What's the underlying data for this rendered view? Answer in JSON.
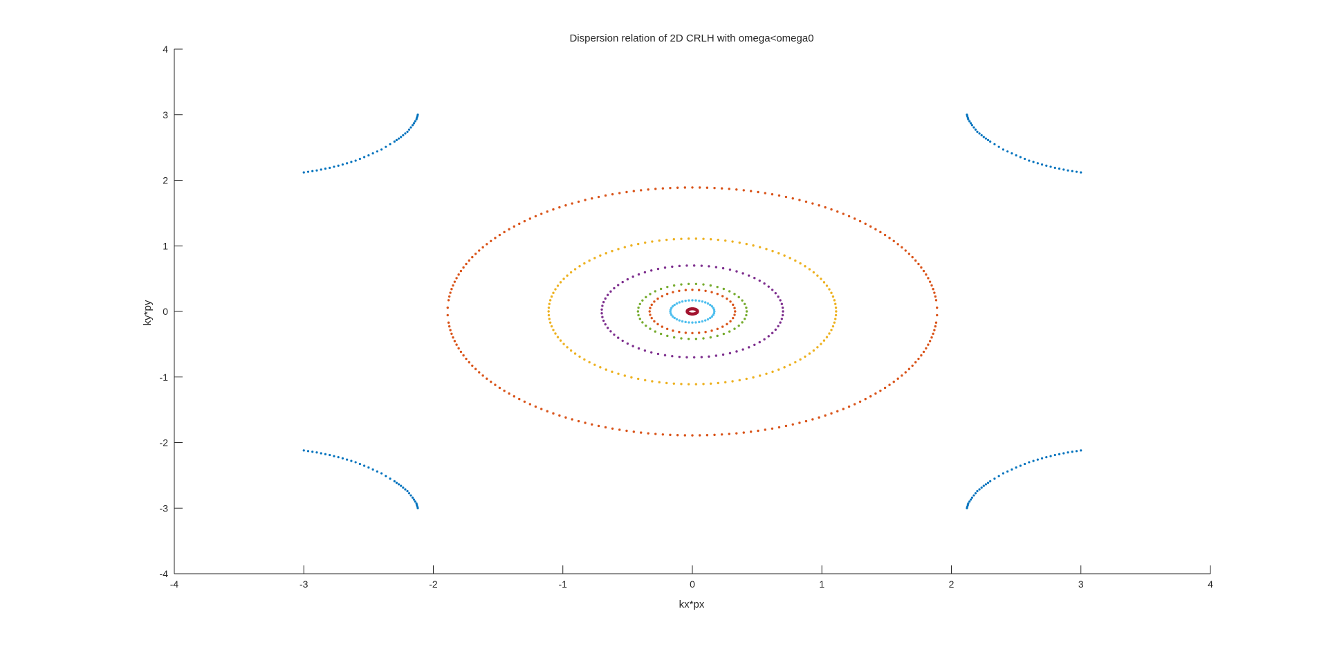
{
  "chart_data": {
    "type": "scatter",
    "title": "Dispersion relation of 2D CRLH with omega<omega0",
    "xlabel": "kx*px",
    "ylabel": "ky*py",
    "xlim": [
      -4,
      4
    ],
    "ylim": [
      -4,
      4
    ],
    "x_ticks": [
      -4,
      -3,
      -2,
      -1,
      0,
      1,
      2,
      3,
      4
    ],
    "y_ticks": [
      -4,
      -3,
      -2,
      -1,
      0,
      1,
      2,
      3,
      4
    ],
    "grid": false,
    "legend": "none",
    "axes_color": "#262626",
    "series": [
      {
        "kind": "corner-hyperbola",
        "color": "#0072BD",
        "points": [
          [
            3.0,
            2.12
          ],
          [
            2.9,
            2.15
          ],
          [
            2.8,
            2.19
          ],
          [
            2.7,
            2.24
          ],
          [
            2.6,
            2.3
          ],
          [
            2.5,
            2.38
          ],
          [
            2.4,
            2.47
          ],
          [
            2.3,
            2.59
          ],
          [
            2.25,
            2.66
          ],
          [
            2.2,
            2.74
          ],
          [
            2.16,
            2.84
          ],
          [
            2.13,
            2.93
          ],
          [
            2.12,
            3.0
          ]
        ]
      },
      {
        "kind": "ellipse-ring",
        "color": "#D95319",
        "a": 1.89,
        "b": 1.89,
        "gaps": [
          [
            -0.35,
            0.35
          ],
          [
            1.1,
            1.65
          ],
          [
            2.75,
            3.5
          ]
        ]
      },
      {
        "kind": "ellipse-ring",
        "color": "#EDB120",
        "a": 1.11,
        "b": 1.11
      },
      {
        "kind": "ellipse-ring",
        "color": "#7E2F8E",
        "a": 0.7,
        "b": 0.7
      },
      {
        "kind": "ellipse-ring",
        "color": "#77AC30",
        "a": 0.42,
        "b": 0.42
      },
      {
        "kind": "ellipse-ring",
        "color": "#D95319",
        "a": 0.33,
        "b": 0.33
      },
      {
        "kind": "ellipse-ring",
        "color": "#4DBEEE",
        "a": 0.17,
        "b": 0.17
      },
      {
        "kind": "ellipse-ring",
        "color": "#A2142F",
        "a": 0.04,
        "b": 0.04
      }
    ]
  }
}
